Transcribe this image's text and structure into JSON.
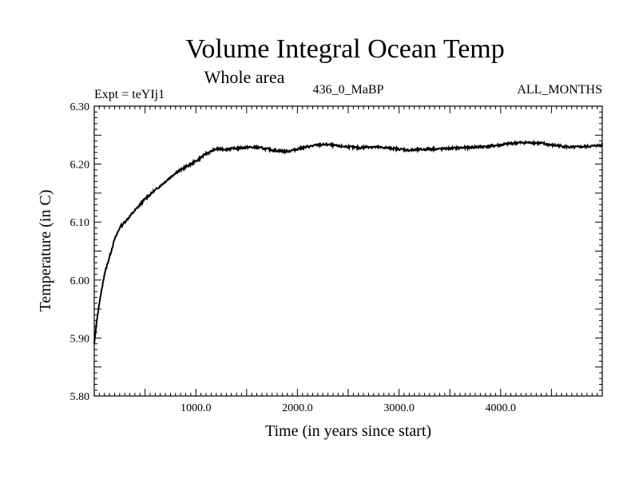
{
  "chart_data": {
    "type": "line",
    "title": "Volume Integral Ocean Temp",
    "subtitle": "Whole area",
    "experiment_label": "Expt = teYIj1",
    "run_label": "436_0_MaBP",
    "season_label": "ALL_MONTHS",
    "xlabel": "Time (in years since start)",
    "ylabel": "Temperature (in C)",
    "xlim": [
      0,
      5000
    ],
    "ylim": [
      5.8,
      6.3
    ],
    "x_ticks": [
      1000,
      2000,
      3000,
      4000
    ],
    "x_tick_labels": [
      "1000.0",
      "2000.0",
      "3000.0",
      "4000.0"
    ],
    "y_ticks": [
      5.8,
      5.9,
      6.0,
      6.1,
      6.2,
      6.3
    ],
    "y_tick_labels": [
      "5.80",
      "5.90",
      "6.00",
      "6.10",
      "6.20",
      "6.30"
    ],
    "grid": false,
    "series": [
      {
        "name": "Volume integral ocean temperature",
        "x": [
          0,
          25,
          50,
          100,
          150,
          200,
          250,
          300,
          400,
          500,
          600,
          700,
          800,
          900,
          1000,
          1100,
          1200,
          1300,
          1400,
          1500,
          1600,
          1700,
          1800,
          1900,
          2000,
          2100,
          2200,
          2300,
          2400,
          2500,
          2600,
          2700,
          2800,
          2900,
          3000,
          3100,
          3200,
          3300,
          3400,
          3500,
          3600,
          3700,
          3800,
          3900,
          4000,
          4100,
          4200,
          4300,
          4400,
          4500,
          4600,
          4700,
          4800,
          4900,
          5000
        ],
        "values": [
          5.89,
          5.93,
          5.96,
          6.01,
          6.04,
          6.07,
          6.09,
          6.1,
          6.12,
          6.14,
          6.155,
          6.17,
          6.185,
          6.195,
          6.205,
          6.218,
          6.226,
          6.226,
          6.227,
          6.229,
          6.229,
          6.226,
          6.223,
          6.222,
          6.226,
          6.23,
          6.233,
          6.234,
          6.231,
          6.23,
          6.228,
          6.23,
          6.229,
          6.228,
          6.226,
          6.224,
          6.225,
          6.226,
          6.226,
          6.227,
          6.228,
          6.229,
          6.23,
          6.231,
          6.233,
          6.236,
          6.237,
          6.237,
          6.236,
          6.233,
          6.231,
          6.229,
          6.23,
          6.231,
          6.233
        ]
      }
    ]
  }
}
